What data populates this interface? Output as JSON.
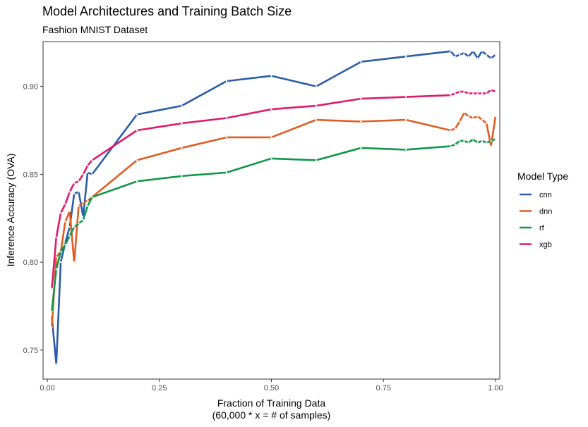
{
  "chart_data": {
    "type": "line",
    "title": "Model Architectures and Training Batch Size",
    "subtitle": "Fashion MNIST Dataset",
    "xlabel_line1": "Fraction of Training Data",
    "xlabel_line2": "(60,000 * x = # of samples)",
    "ylabel": "Inference Accuracy (OVA)",
    "xlim": [
      -0.0095,
      1.0095
    ],
    "ylim": [
      0.7335,
      0.9255
    ],
    "x_ticks": [
      0.0,
      0.25,
      0.5,
      0.75,
      1.0
    ],
    "x_tick_labels": [
      "0.00",
      "0.25",
      "0.50",
      "0.75",
      "1.00"
    ],
    "y_ticks": [
      0.75,
      0.8,
      0.85,
      0.9
    ],
    "y_tick_labels": [
      "0.75",
      "0.80",
      "0.85",
      "0.90"
    ],
    "grid": false,
    "legend": {
      "title": "Model Type",
      "position": "right"
    },
    "series": [
      {
        "name": "cnn",
        "color": "#2a5ca8",
        "x": [
          0.01,
          0.02,
          0.03,
          0.04,
          0.05,
          0.06,
          0.07,
          0.08,
          0.09,
          0.1,
          0.2,
          0.3,
          0.4,
          0.5,
          0.6,
          0.7,
          0.8,
          0.9,
          0.91,
          0.92,
          0.93,
          0.94,
          0.95,
          0.96,
          0.97,
          0.98,
          0.99,
          1.0
        ],
        "y": [
          0.769,
          0.742,
          0.8,
          0.811,
          0.82,
          0.839,
          0.84,
          0.826,
          0.851,
          0.85,
          0.884,
          0.889,
          0.903,
          0.906,
          0.9,
          0.914,
          0.917,
          0.92,
          0.917,
          0.918,
          0.919,
          0.917,
          0.92,
          0.916,
          0.92,
          0.918,
          0.916,
          0.918
        ]
      },
      {
        "name": "dnn",
        "color": "#e05c24",
        "x": [
          0.01,
          0.02,
          0.03,
          0.04,
          0.05,
          0.06,
          0.07,
          0.08,
          0.09,
          0.1,
          0.2,
          0.3,
          0.4,
          0.5,
          0.6,
          0.7,
          0.8,
          0.9,
          0.91,
          0.92,
          0.93,
          0.94,
          0.95,
          0.96,
          0.97,
          0.98,
          0.99,
          1.0
        ],
        "y": [
          0.763,
          0.803,
          0.806,
          0.823,
          0.829,
          0.8,
          0.832,
          0.834,
          0.835,
          0.837,
          0.858,
          0.865,
          0.871,
          0.871,
          0.881,
          0.88,
          0.881,
          0.875,
          0.876,
          0.88,
          0.885,
          0.883,
          0.882,
          0.883,
          0.881,
          0.879,
          0.866,
          0.883
        ]
      },
      {
        "name": "rf",
        "color": "#0f9647",
        "x": [
          0.01,
          0.02,
          0.03,
          0.04,
          0.05,
          0.06,
          0.07,
          0.08,
          0.09,
          0.1,
          0.2,
          0.3,
          0.4,
          0.5,
          0.6,
          0.7,
          0.8,
          0.9,
          0.91,
          0.92,
          0.93,
          0.94,
          0.95,
          0.96,
          0.97,
          0.98,
          0.99,
          1.0
        ],
        "y": [
          0.772,
          0.796,
          0.806,
          0.81,
          0.815,
          0.82,
          0.822,
          0.824,
          0.832,
          0.837,
          0.846,
          0.849,
          0.851,
          0.859,
          0.858,
          0.865,
          0.864,
          0.866,
          0.867,
          0.869,
          0.869,
          0.868,
          0.87,
          0.868,
          0.869,
          0.868,
          0.869,
          0.87
        ]
      },
      {
        "name": "xgb",
        "color": "#e0186c",
        "x": [
          0.01,
          0.02,
          0.03,
          0.04,
          0.05,
          0.06,
          0.07,
          0.08,
          0.09,
          0.1,
          0.2,
          0.3,
          0.4,
          0.5,
          0.6,
          0.7,
          0.8,
          0.9,
          0.91,
          0.92,
          0.93,
          0.94,
          0.95,
          0.96,
          0.97,
          0.98,
          0.99,
          1.0
        ],
        "y": [
          0.785,
          0.814,
          0.828,
          0.833,
          0.84,
          0.845,
          0.846,
          0.85,
          0.855,
          0.858,
          0.875,
          0.879,
          0.882,
          0.887,
          0.889,
          0.893,
          0.894,
          0.895,
          0.896,
          0.897,
          0.897,
          0.896,
          0.896,
          0.896,
          0.896,
          0.896,
          0.898,
          0.897
        ]
      }
    ]
  }
}
